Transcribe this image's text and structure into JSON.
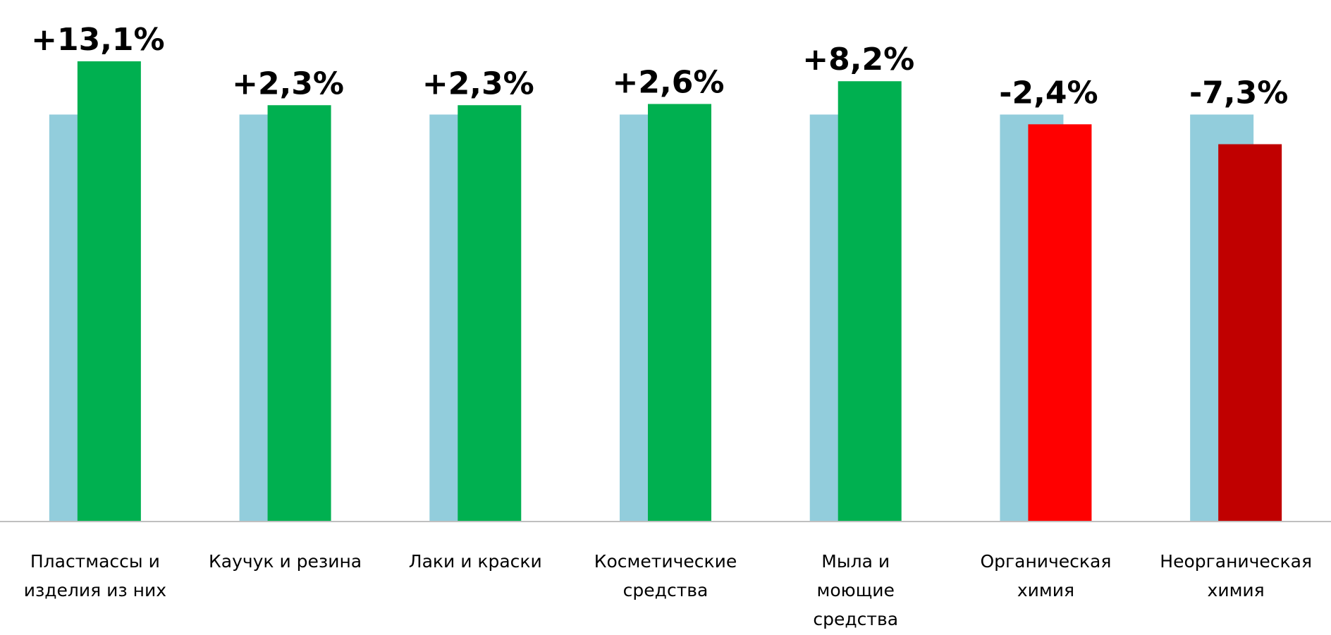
{
  "chart_data": {
    "type": "bar",
    "title": "",
    "xlabel": "",
    "ylabel": "",
    "baseline_index": 100,
    "categories": [
      [
        "Пластмассы и",
        "изделия из них"
      ],
      [
        "Каучук и резина"
      ],
      [
        "Лаки и краски"
      ],
      [
        "Косметические",
        "средства"
      ],
      [
        "Мыла и",
        "моющие",
        "средства"
      ],
      [
        "Органическая",
        "химия"
      ],
      [
        "Неорганическая",
        "химия"
      ]
    ],
    "series": [
      {
        "values": [
          100,
          100,
          100,
          100,
          100,
          100,
          100
        ],
        "color": "#92cddc"
      },
      {
        "values": [
          113.1,
          102.3,
          102.3,
          102.6,
          108.2,
          97.6,
          92.7
        ],
        "colors": [
          "#00b050",
          "#00b050",
          "#00b050",
          "#00b050",
          "#00b050",
          "#ff0000",
          "#c00000"
        ]
      }
    ],
    "data_labels": [
      "+13,1%",
      "+2,3%",
      "+2,3%",
      "+2,6%",
      "+8,2%",
      "-2,4%",
      "-7,3%"
    ],
    "ylim": [
      0,
      113.1
    ],
    "grid": false,
    "legend": "none"
  }
}
